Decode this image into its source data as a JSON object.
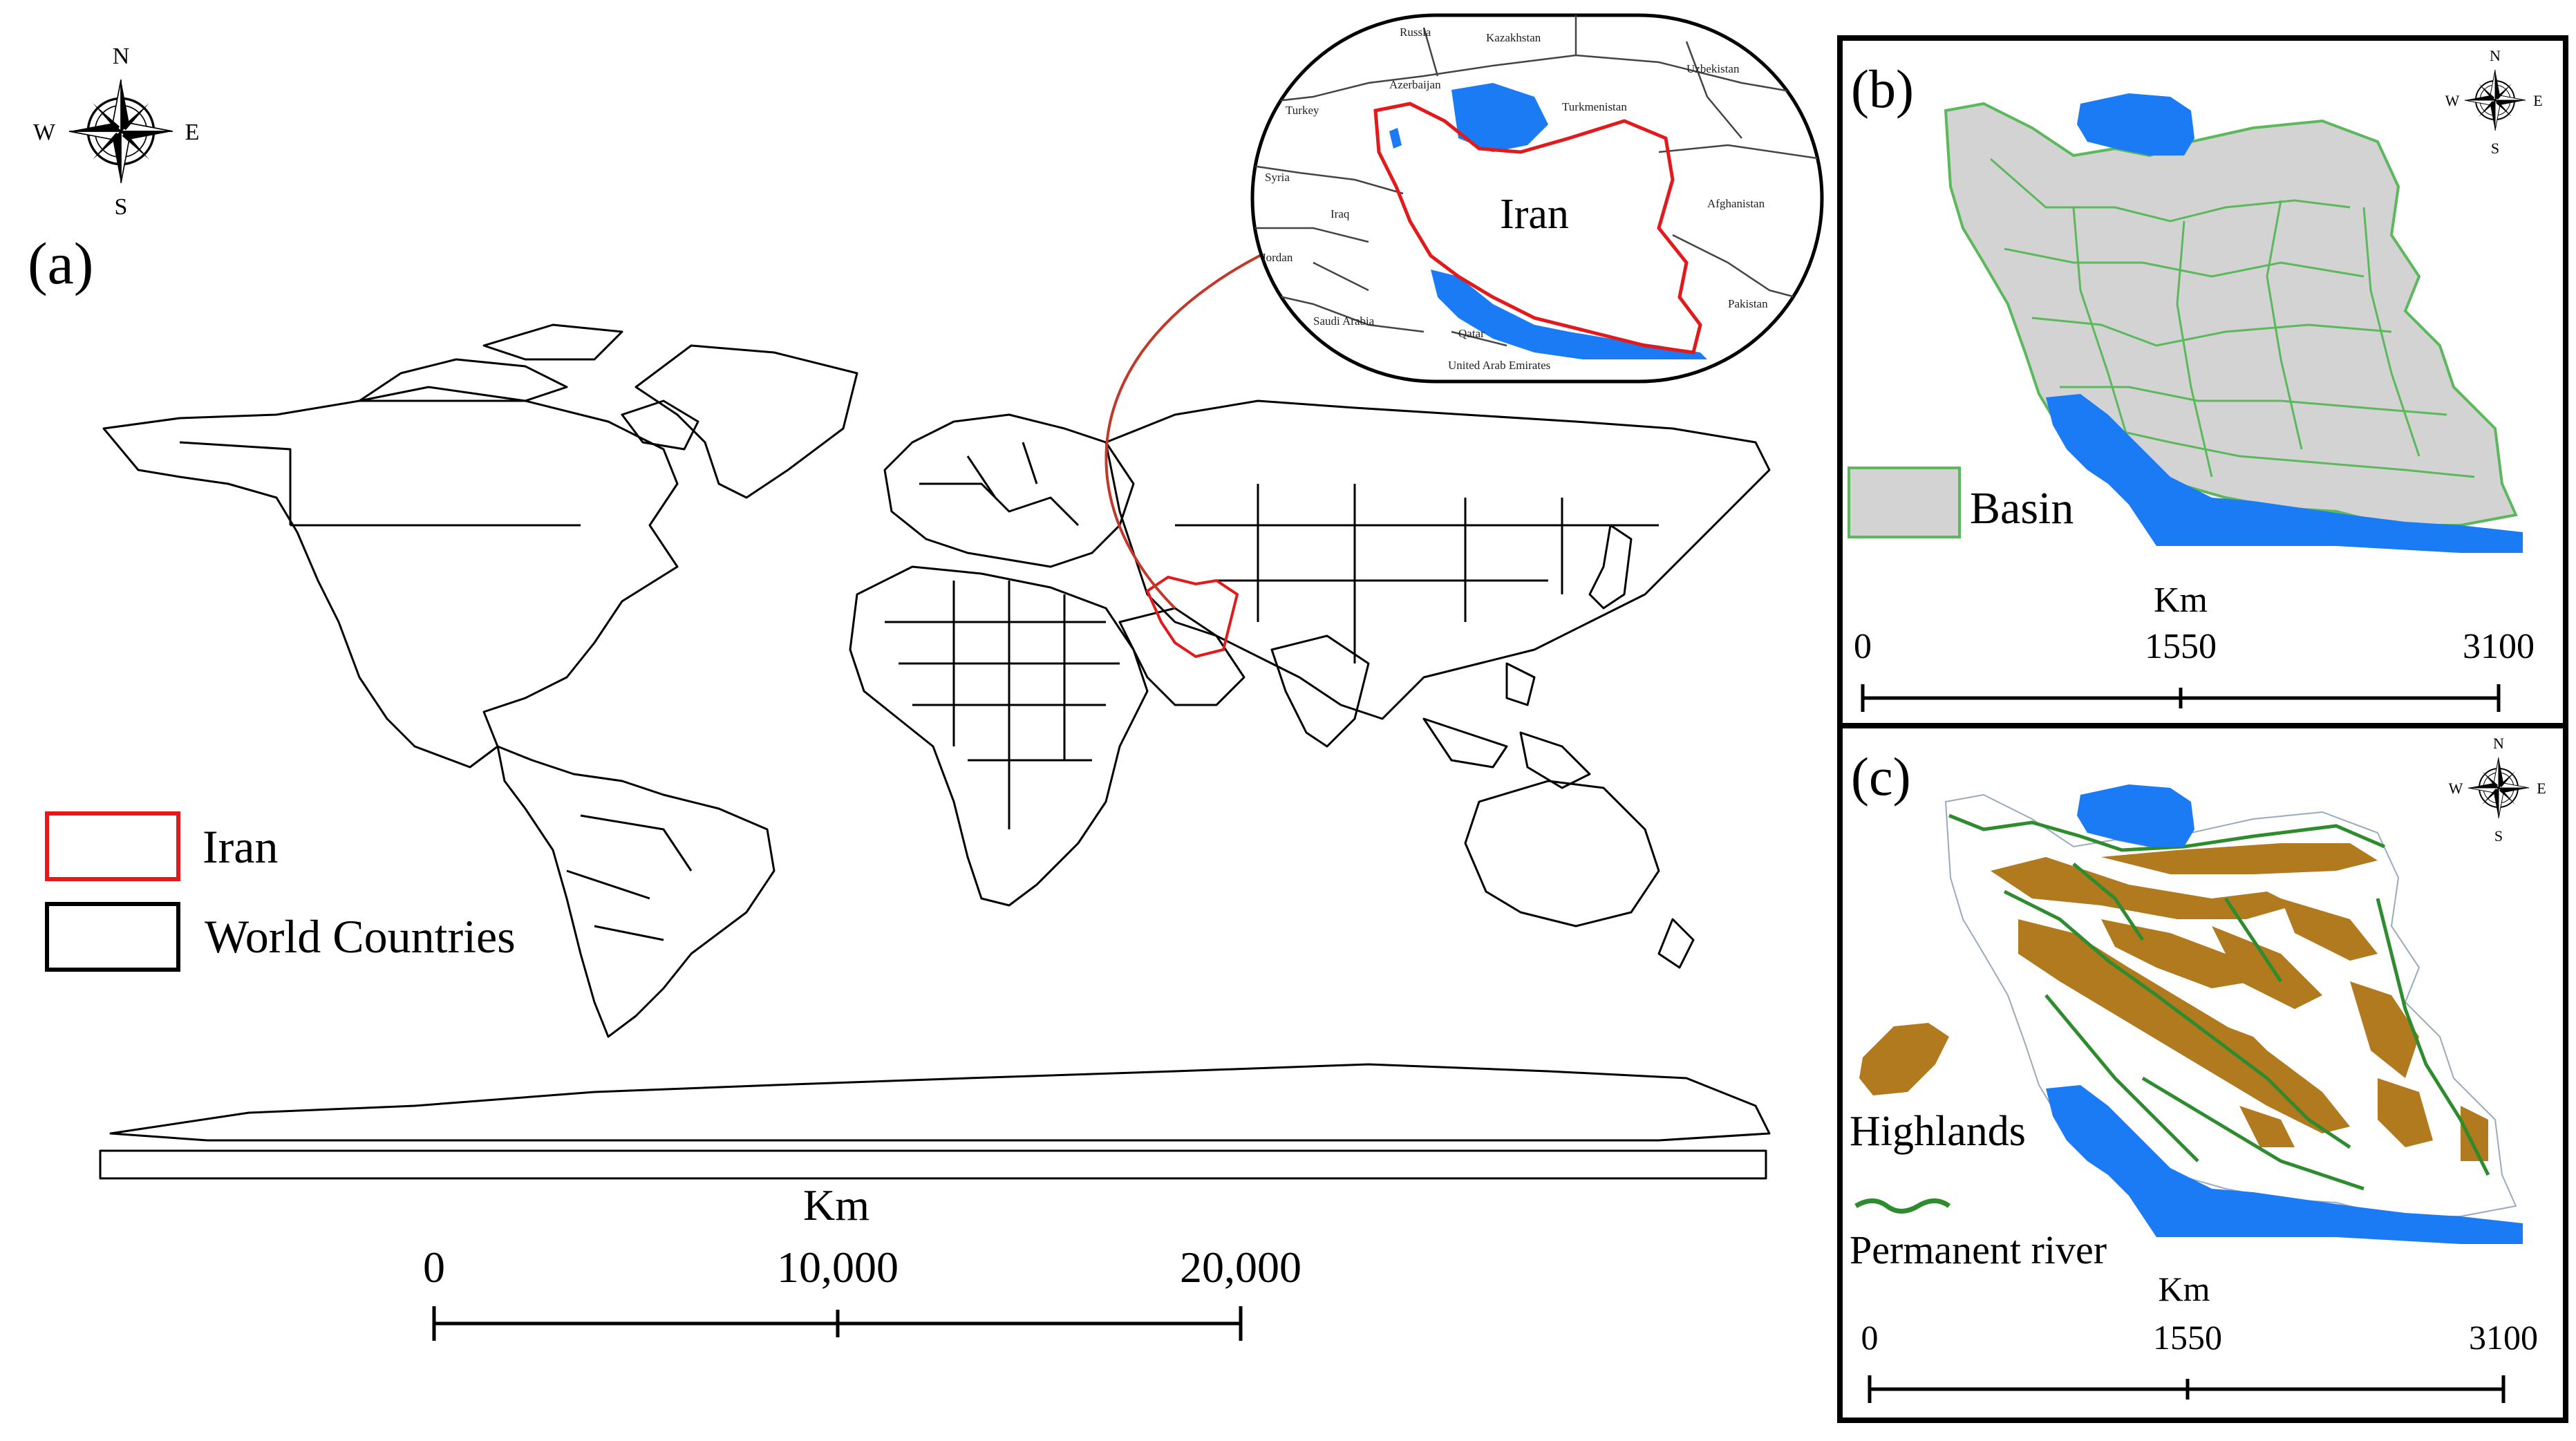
{
  "panel_a": {
    "label": "(a)",
    "compass": {
      "n": "N",
      "s": "S",
      "e": "E",
      "w": "W"
    },
    "inset": {
      "title": "Iran",
      "neighbors": [
        "Russia",
        "Kazakhstan",
        "Uzbekistan",
        "Azerbaijan",
        "Turkmenistan",
        "Turkey",
        "Syria",
        "Iraq",
        "Afghanistan",
        "Jordan",
        "Saudi Arabia",
        "Pakistan",
        "Qatar",
        "United Arab Emirates"
      ]
    },
    "legend": [
      {
        "label": "Iran",
        "color": "#e31a1c",
        "icon": "red-outline-box"
      },
      {
        "label": "World Countries",
        "color": "#000000",
        "icon": "black-outline-box"
      }
    ],
    "scale": {
      "unit": "Km",
      "ticks": [
        "0",
        "10,000",
        "20,000"
      ]
    }
  },
  "panel_b": {
    "label": "(b)",
    "compass": {
      "n": "N",
      "s": "S",
      "e": "E",
      "w": "W"
    },
    "legend": [
      {
        "label": "Basin",
        "color": "#d3d3d3",
        "border": "#5cb85c"
      }
    ],
    "scale": {
      "unit": "Km",
      "ticks": [
        "0",
        "1550",
        "3100"
      ]
    }
  },
  "panel_c": {
    "label": "(c)",
    "compass": {
      "n": "N",
      "s": "S",
      "e": "E",
      "w": "W"
    },
    "legend": [
      {
        "label": "Highlands",
        "color": "#b27a1f"
      },
      {
        "label": "Permanent river",
        "color": "#2e8b2e"
      }
    ],
    "scale": {
      "unit": "Km",
      "ticks": [
        "0",
        "1550",
        "3100"
      ]
    }
  },
  "colors": {
    "water": "#1a7bf5",
    "iran_border": "#e31a1c",
    "basin_fill": "#d3d3d3",
    "basin_line": "#5cb85c",
    "highlands": "#b27a1f",
    "river": "#2e8b2e"
  }
}
